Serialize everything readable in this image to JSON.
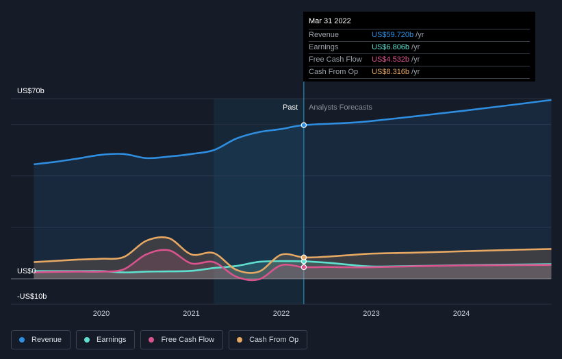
{
  "chart_data": {
    "type": "line",
    "y_axis": {
      "top_label": "US$70b",
      "zero_label": "US$0",
      "bottom_label": "-US$10b",
      "ylim": [
        -10,
        70
      ]
    },
    "x_axis": {
      "ticks": [
        "2020",
        "2021",
        "2022",
        "2023",
        "2024"
      ],
      "xlim": [
        2019.25,
        2025.0
      ]
    },
    "divider": {
      "x": 2022.25,
      "past_label": "Past",
      "forecast_label": "Analysts Forecasts"
    },
    "series": [
      {
        "name": "Revenue",
        "color": "#2f8ee0",
        "points": [
          [
            2019.25,
            44.5
          ],
          [
            2019.5,
            45.5
          ],
          [
            2019.75,
            46.8
          ],
          [
            2020.0,
            48.2
          ],
          [
            2020.25,
            48.5
          ],
          [
            2020.5,
            46.9
          ],
          [
            2020.75,
            47.5
          ],
          [
            2021.0,
            48.5
          ],
          [
            2021.25,
            50.0
          ],
          [
            2021.5,
            54.5
          ],
          [
            2021.75,
            57.0
          ],
          [
            2022.0,
            58.2
          ],
          [
            2022.25,
            59.72
          ],
          [
            2022.75,
            60.6
          ],
          [
            2023.0,
            61.3
          ],
          [
            2023.5,
            63.2
          ],
          [
            2024.0,
            65.2
          ],
          [
            2024.5,
            67.3
          ],
          [
            2025.0,
            69.5
          ]
        ]
      },
      {
        "name": "Earnings",
        "color": "#5fe0cf",
        "points": [
          [
            2019.25,
            3.0
          ],
          [
            2019.5,
            3.0
          ],
          [
            2019.75,
            3.0
          ],
          [
            2020.0,
            3.0
          ],
          [
            2020.25,
            2.5
          ],
          [
            2020.5,
            2.8
          ],
          [
            2020.75,
            2.9
          ],
          [
            2021.0,
            3.1
          ],
          [
            2021.25,
            4.2
          ],
          [
            2021.5,
            5.0
          ],
          [
            2021.75,
            6.6
          ],
          [
            2022.0,
            6.9
          ],
          [
            2022.25,
            6.806
          ],
          [
            2022.5,
            6.3
          ],
          [
            2022.75,
            5.5
          ],
          [
            2023.0,
            4.8
          ],
          [
            2023.5,
            5.0
          ],
          [
            2024.0,
            5.3
          ],
          [
            2024.5,
            5.5
          ],
          [
            2025.0,
            5.7
          ]
        ]
      },
      {
        "name": "Free Cash Flow",
        "color": "#d9538d",
        "points": [
          [
            2019.25,
            2.5
          ],
          [
            2019.5,
            2.7
          ],
          [
            2019.75,
            2.8
          ],
          [
            2020.0,
            2.8
          ],
          [
            2020.25,
            3.7
          ],
          [
            2020.5,
            9.5
          ],
          [
            2020.75,
            11.1
          ],
          [
            2021.0,
            6.0
          ],
          [
            2021.25,
            6.5
          ],
          [
            2021.5,
            0.8
          ],
          [
            2021.75,
            -0.2
          ],
          [
            2022.0,
            5.3
          ],
          [
            2022.25,
            4.532
          ],
          [
            2022.5,
            4.6
          ],
          [
            2022.75,
            4.5
          ],
          [
            2023.0,
            4.5
          ],
          [
            2023.5,
            4.9
          ],
          [
            2024.0,
            5.2
          ],
          [
            2024.5,
            5.3
          ],
          [
            2025.0,
            5.4
          ]
        ]
      },
      {
        "name": "Cash From Op",
        "color": "#e6a863",
        "points": [
          [
            2019.25,
            6.5
          ],
          [
            2019.5,
            7.0
          ],
          [
            2019.75,
            7.5
          ],
          [
            2020.0,
            7.8
          ],
          [
            2020.25,
            8.5
          ],
          [
            2020.5,
            14.8
          ],
          [
            2020.75,
            15.8
          ],
          [
            2021.0,
            9.5
          ],
          [
            2021.25,
            10.0
          ],
          [
            2021.5,
            3.5
          ],
          [
            2021.75,
            2.8
          ],
          [
            2022.0,
            9.4
          ],
          [
            2022.25,
            8.316
          ],
          [
            2022.5,
            8.6
          ],
          [
            2022.75,
            9.2
          ],
          [
            2023.0,
            9.8
          ],
          [
            2023.5,
            10.2
          ],
          [
            2024.0,
            10.7
          ],
          [
            2024.5,
            11.2
          ],
          [
            2025.0,
            11.6
          ]
        ]
      }
    ]
  },
  "tooltip": {
    "date": "Mar 31 2022",
    "rows": [
      {
        "label": "Revenue",
        "value": "US$59.720b",
        "unit": "/yr",
        "color": "#2f8ee0"
      },
      {
        "label": "Earnings",
        "value": "US$6.806b",
        "unit": "/yr",
        "color": "#5fe0cf"
      },
      {
        "label": "Free Cash Flow",
        "value": "US$4.532b",
        "unit": "/yr",
        "color": "#d9538d"
      },
      {
        "label": "Cash From Op",
        "value": "US$8.316b",
        "unit": "/yr",
        "color": "#e6a863"
      }
    ]
  },
  "legend": [
    {
      "label": "Revenue",
      "color": "#2f8ee0"
    },
    {
      "label": "Earnings",
      "color": "#5fe0cf"
    },
    {
      "label": "Free Cash Flow",
      "color": "#d9538d"
    },
    {
      "label": "Cash From Op",
      "color": "#e6a863"
    }
  ]
}
